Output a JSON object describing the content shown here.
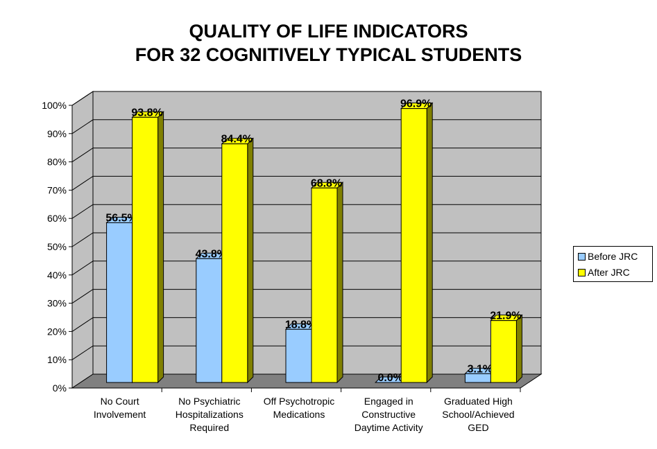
{
  "chart_data": {
    "type": "bar",
    "title": [
      "QUALITY OF LIFE INDICATORS",
      "FOR 32 COGNITIVELY TYPICAL STUDENTS"
    ],
    "categories": [
      [
        "No Court",
        "Involvement"
      ],
      [
        "No Psychiatric",
        "Hospitalizations",
        "Required"
      ],
      [
        "Off Psychotropic",
        "Medications"
      ],
      [
        "Engaged in",
        "Constructive",
        "Daytime Activity"
      ],
      [
        "Graduated High",
        "School/Achieved",
        "GED"
      ]
    ],
    "series": [
      {
        "name": "Before JRC",
        "values": [
          56.5,
          43.8,
          18.8,
          0.0,
          3.1
        ],
        "labels": [
          "56.5%",
          "43.8%",
          "18.8%",
          "0.0%",
          "3.1%"
        ],
        "color": "#99ccff",
        "side_color": "#6b8fb3"
      },
      {
        "name": "After JRC",
        "values": [
          93.8,
          84.4,
          68.8,
          96.9,
          21.9
        ],
        "labels": [
          "93.8%",
          "84.4%",
          "68.8%",
          "96.9%",
          "21.9%"
        ],
        "color": "#ffff00",
        "side_color": "#808000"
      }
    ],
    "yticks": [
      "0%",
      "10%",
      "20%",
      "30%",
      "40%",
      "50%",
      "60%",
      "70%",
      "80%",
      "90%",
      "100%"
    ],
    "ylim": [
      0,
      100
    ],
    "grid": true,
    "legend_position": "right",
    "wall_color": "#c0c0c0",
    "floor_color": "#808080"
  }
}
